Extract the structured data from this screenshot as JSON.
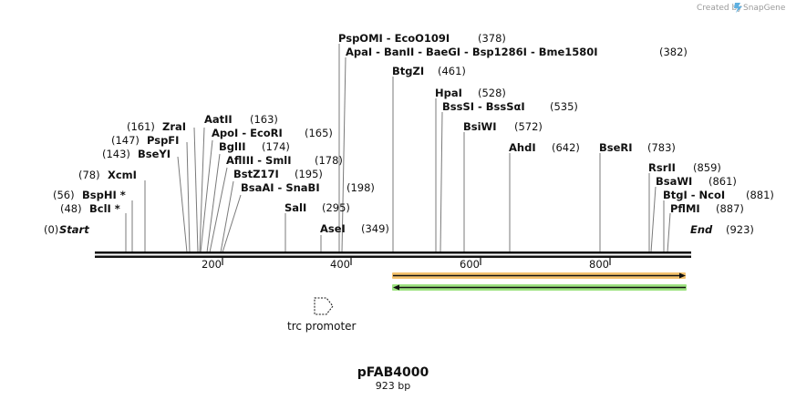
{
  "credit": {
    "prefix": "Created by",
    "brand": "SnapGene"
  },
  "plasmid": {
    "name": "pFAB4000",
    "length_label": "923 bp",
    "length": 923
  },
  "ticks": [
    "200",
    "400",
    "600",
    "800"
  ],
  "ends": {
    "start": {
      "name": "Start",
      "pos": "(0)"
    },
    "end": {
      "name": "End",
      "pos": "(923)"
    }
  },
  "sites": [
    {
      "text": "BclI *",
      "pos": "(48)"
    },
    {
      "text": "BspHI *",
      "pos": "(56)"
    },
    {
      "text": "XcmI",
      "pos": "(78)"
    },
    {
      "text": "BseYI",
      "pos": "(143)"
    },
    {
      "text": "PspFI",
      "pos": "(147)"
    },
    {
      "text": "ZraI",
      "pos": "(161)"
    },
    {
      "text": "AatII",
      "pos": "(163)"
    },
    {
      "text": "ApoI  - EcoRI",
      "pos": "(165)"
    },
    {
      "text": "BglII",
      "pos": "(174)"
    },
    {
      "text": "AflIII  - SmlI",
      "pos": "(178)"
    },
    {
      "text": "BstZ17I",
      "pos": "(195)"
    },
    {
      "text": "BsaAI  - SnaBI",
      "pos": "(198)"
    },
    {
      "text": "SalI",
      "pos": "(295)"
    },
    {
      "text": "AseI",
      "pos": "(349)"
    },
    {
      "text": "PspOMI  - EcoO109I",
      "pos": "(378)"
    },
    {
      "text": "ApaI  - BanII  - BaeGI  - Bsp1286I  - Bme1580I",
      "pos": "(382)"
    },
    {
      "text": "BtgZI",
      "pos": "(461)"
    },
    {
      "text": "HpaI",
      "pos": "(528)"
    },
    {
      "text": "BssSI  - BssSαI",
      "pos": "(535)"
    },
    {
      "text": "BsiWI",
      "pos": "(572)"
    },
    {
      "text": "AhdI",
      "pos": "(642)"
    },
    {
      "text": "BseRI",
      "pos": "(783)"
    },
    {
      "text": "RsrII",
      "pos": "(859)"
    },
    {
      "text": "BsaWI",
      "pos": "(861)"
    },
    {
      "text": "BtgI  - NcoI",
      "pos": "(881)"
    },
    {
      "text": "PflMI",
      "pos": "(887)"
    }
  ],
  "features": {
    "promoter": {
      "label": "trc promoter"
    },
    "forward_color": "#f0a830",
    "reverse_color": "#7ed957"
  }
}
